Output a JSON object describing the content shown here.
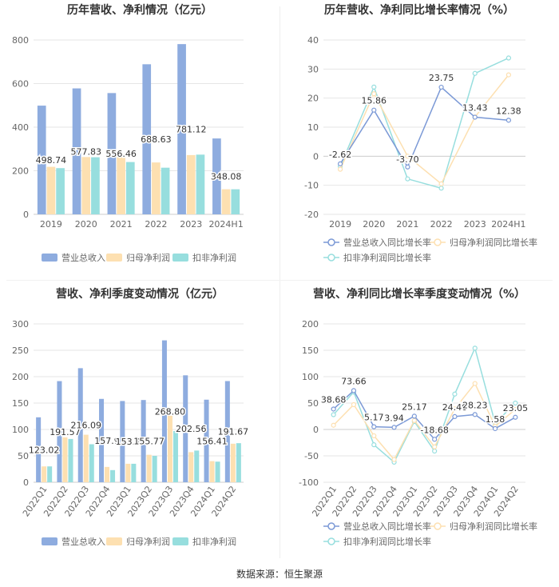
{
  "source": "数据来源：恒生聚源",
  "colors": {
    "revenue": "#8eacdf",
    "net_profit": "#fde0b1",
    "deducted_profit": "#97dede",
    "grid": "#e6e6e6",
    "axis_text": "#666666",
    "title": "#333333",
    "label": "#333333"
  },
  "chart_data": [
    {
      "type": "bar",
      "title": "历年营收、净利情况（亿元）",
      "categories": [
        "2019",
        "2020",
        "2021",
        "2022",
        "2023",
        "2024H1"
      ],
      "series": [
        {
          "name": "营业总收入",
          "values": [
            498.74,
            577.83,
            556.46,
            688.63,
            781.12,
            348.08
          ],
          "labels": [
            "498.74",
            "577.83",
            "556.46",
            "688.63",
            "781.12",
            "348.08"
          ]
        },
        {
          "name": "归母净利润",
          "values": [
            218,
            263,
            262,
            238,
            272,
            115
          ]
        },
        {
          "name": "扣非净利润",
          "values": [
            212,
            262,
            240,
            214,
            274,
            115
          ]
        }
      ],
      "ylim": [
        0,
        800
      ],
      "yticks": [
        "0",
        "200",
        "400",
        "600",
        "800"
      ],
      "legend": "bottom",
      "grid": true
    },
    {
      "type": "line",
      "title": "历年营收、净利同比增长率情况（%）",
      "categories": [
        "2019",
        "2020",
        "2021",
        "2022",
        "2023",
        "2024H1"
      ],
      "series": [
        {
          "name": "营业总收入同比增长率",
          "values": [
            -2.62,
            15.86,
            -3.7,
            23.75,
            13.43,
            12.38
          ],
          "labels": [
            "-2.62",
            "15.86",
            "-3.70",
            "23.75",
            "13.43",
            "12.38"
          ]
        },
        {
          "name": "归母净利润同比增长率",
          "values": [
            -4.5,
            21.5,
            0,
            -9.5,
            13.5,
            28
          ]
        },
        {
          "name": "扣非净利润同比增长率",
          "values": [
            -3.5,
            23.8,
            -7.8,
            -11,
            28.5,
            33.8
          ]
        }
      ],
      "ylim": [
        -20,
        40
      ],
      "yticks": [
        "-20",
        "-10",
        "0",
        "10",
        "20",
        "30",
        "40"
      ],
      "legend": "bottom",
      "grid": true
    },
    {
      "type": "bar",
      "title": "营收、净利季度变动情况（亿元）",
      "categories": [
        "2022Q1",
        "2022Q2",
        "2022Q3",
        "2022Q4",
        "2023Q1",
        "2023Q2",
        "2023Q3",
        "2023Q4",
        "2024Q1",
        "2024Q2"
      ],
      "series": [
        {
          "name": "营业总收入",
          "values": [
            123.02,
            191.57,
            216.09,
            157.9,
            153.9,
            155.77,
            268.8,
            202.56,
            156.41,
            191.67
          ],
          "labels": [
            "123.02",
            "191.57",
            "216.09",
            "157.9",
            "153.9",
            "155.77",
            "268.80",
            "202.56",
            "156.41",
            "191.67"
          ]
        },
        {
          "name": "归母净利润",
          "values": [
            30,
            85,
            90,
            29,
            35,
            52,
            126,
            57,
            40,
            73
          ]
        },
        {
          "name": "扣非净利润",
          "values": [
            30,
            82,
            72,
            23,
            35,
            50,
            97,
            60,
            39,
            74
          ]
        }
      ],
      "ylim": [
        0,
        300
      ],
      "yticks": [
        "0",
        "50",
        "100",
        "150",
        "200",
        "250",
        "300"
      ],
      "legend": "bottom",
      "grid": true
    },
    {
      "type": "line",
      "title": "营收、净利同比增长率季度变动情况（%）",
      "categories": [
        "2022Q1",
        "2022Q2",
        "2022Q3",
        "2022Q4",
        "2023Q1",
        "2023Q2",
        "2023Q3",
        "2023Q4",
        "2024Q1",
        "2024Q2"
      ],
      "series": [
        {
          "name": "营业总收入同比增长率",
          "values": [
            38.68,
            73.66,
            5.17,
            3.94,
            25.17,
            -18.68,
            24.4,
            28.23,
            1.58,
            23.05
          ],
          "labels": [
            "38.68",
            "73.66",
            "5.17",
            "3.94",
            "25.17",
            "-18.68",
            "24.40",
            "28.23",
            "1.58",
            "23.05"
          ]
        },
        {
          "name": "归母净利润同比增长率",
          "values": [
            8,
            47,
            -12,
            -57,
            17,
            -33,
            39,
            87,
            6,
            38
          ]
        },
        {
          "name": "扣非净利润同比增长率",
          "values": [
            28,
            71,
            -29,
            -62,
            15,
            -41,
            67,
            154,
            12,
            50
          ]
        }
      ],
      "ylim": [
        -100,
        200
      ],
      "yticks": [
        "-100",
        "-50",
        "0",
        "50",
        "100",
        "150",
        "200"
      ],
      "legend": "bottom",
      "grid": true
    }
  ]
}
